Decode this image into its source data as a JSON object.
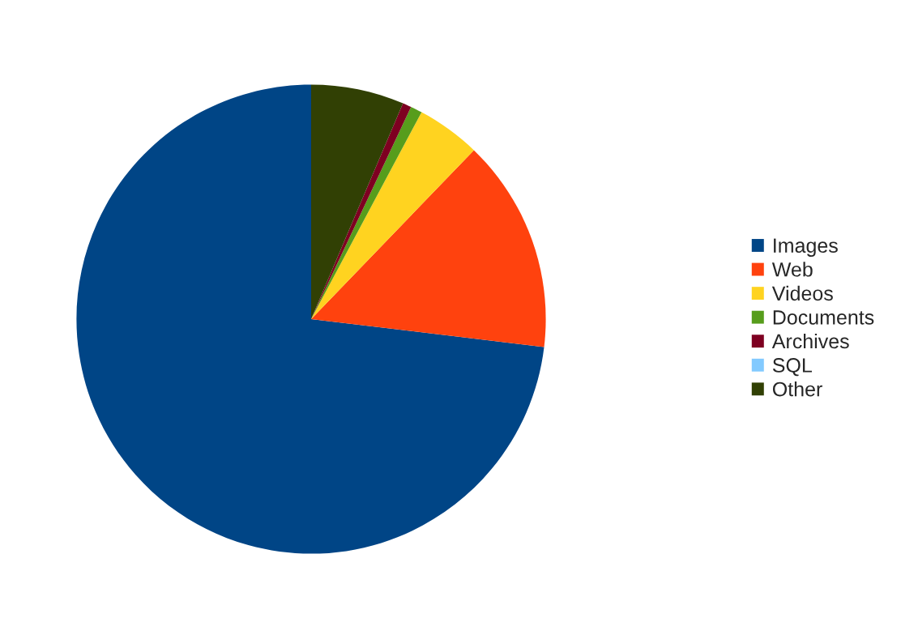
{
  "chart_data": {
    "type": "pie",
    "categories": [
      "Images",
      "Web",
      "Videos",
      "Documents",
      "Archives",
      "SQL",
      "Other"
    ],
    "values": [
      73.1,
      14.7,
      4.4,
      0.8,
      0.6,
      0,
      6.4
    ],
    "colors": [
      "#004586",
      "#ff420e",
      "#ffd320",
      "#579d1c",
      "#7e0021",
      "#83caff",
      "#314004"
    ],
    "legend": "right"
  }
}
